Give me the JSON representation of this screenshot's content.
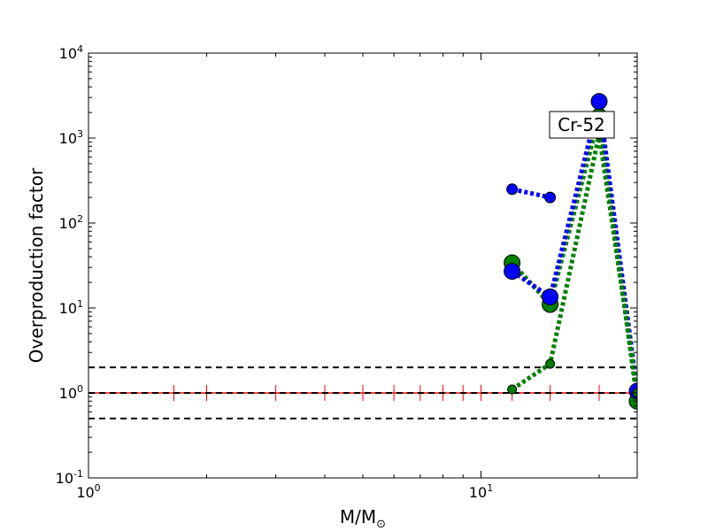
{
  "chart_data": {
    "type": "line",
    "title": "",
    "xlabel": "M/M",
    "xlabel_symbol": "⊙",
    "ylabel": "Overproduction factor",
    "x_scale": "log",
    "y_scale": "log",
    "xlim": [
      1,
      25
    ],
    "ylim": [
      0.1,
      10000
    ],
    "x_ticks": [
      {
        "value": 1,
        "base": "10",
        "exp": "0"
      },
      {
        "value": 10,
        "base": "10",
        "exp": "1"
      }
    ],
    "y_ticks": [
      {
        "value": 0.1,
        "base": "10",
        "exp": "-1"
      },
      {
        "value": 1,
        "base": "10",
        "exp": "0"
      },
      {
        "value": 10,
        "base": "10",
        "exp": "1"
      },
      {
        "value": 100,
        "base": "10",
        "exp": "2"
      },
      {
        "value": 1000,
        "base": "10",
        "exp": "3"
      },
      {
        "value": 10000,
        "base": "10",
        "exp": "4"
      }
    ],
    "grid": false,
    "annotation": "Cr-52",
    "reference_lines": {
      "solar": 1.0,
      "upper": 2.0,
      "lower": 0.5,
      "solar_marker_x": [
        1.65,
        2,
        3,
        4,
        5,
        6,
        7,
        8,
        9,
        10,
        12,
        15,
        20
      ]
    },
    "series": [
      {
        "color": "#0000ff",
        "points": [
          [
            12,
            250,
            6
          ],
          [
            15,
            200,
            6
          ]
        ]
      },
      {
        "color": "#008000",
        "points": [
          [
            12,
            34,
            9
          ],
          [
            15,
            11,
            9
          ],
          [
            20,
            1800,
            9
          ],
          [
            25,
            0.8,
            9
          ]
        ]
      },
      {
        "color": "#0000ff",
        "points": [
          [
            12,
            27,
            9
          ],
          [
            15,
            13.5,
            9
          ],
          [
            20,
            2700,
            9
          ],
          [
            25,
            1.05,
            9
          ]
        ]
      },
      {
        "color": "#008000",
        "points": [
          [
            12,
            1.1,
            5
          ],
          [
            15,
            2.2,
            5
          ],
          [
            20,
            1100,
            5
          ],
          [
            25,
            1.0,
            5
          ]
        ]
      }
    ]
  }
}
